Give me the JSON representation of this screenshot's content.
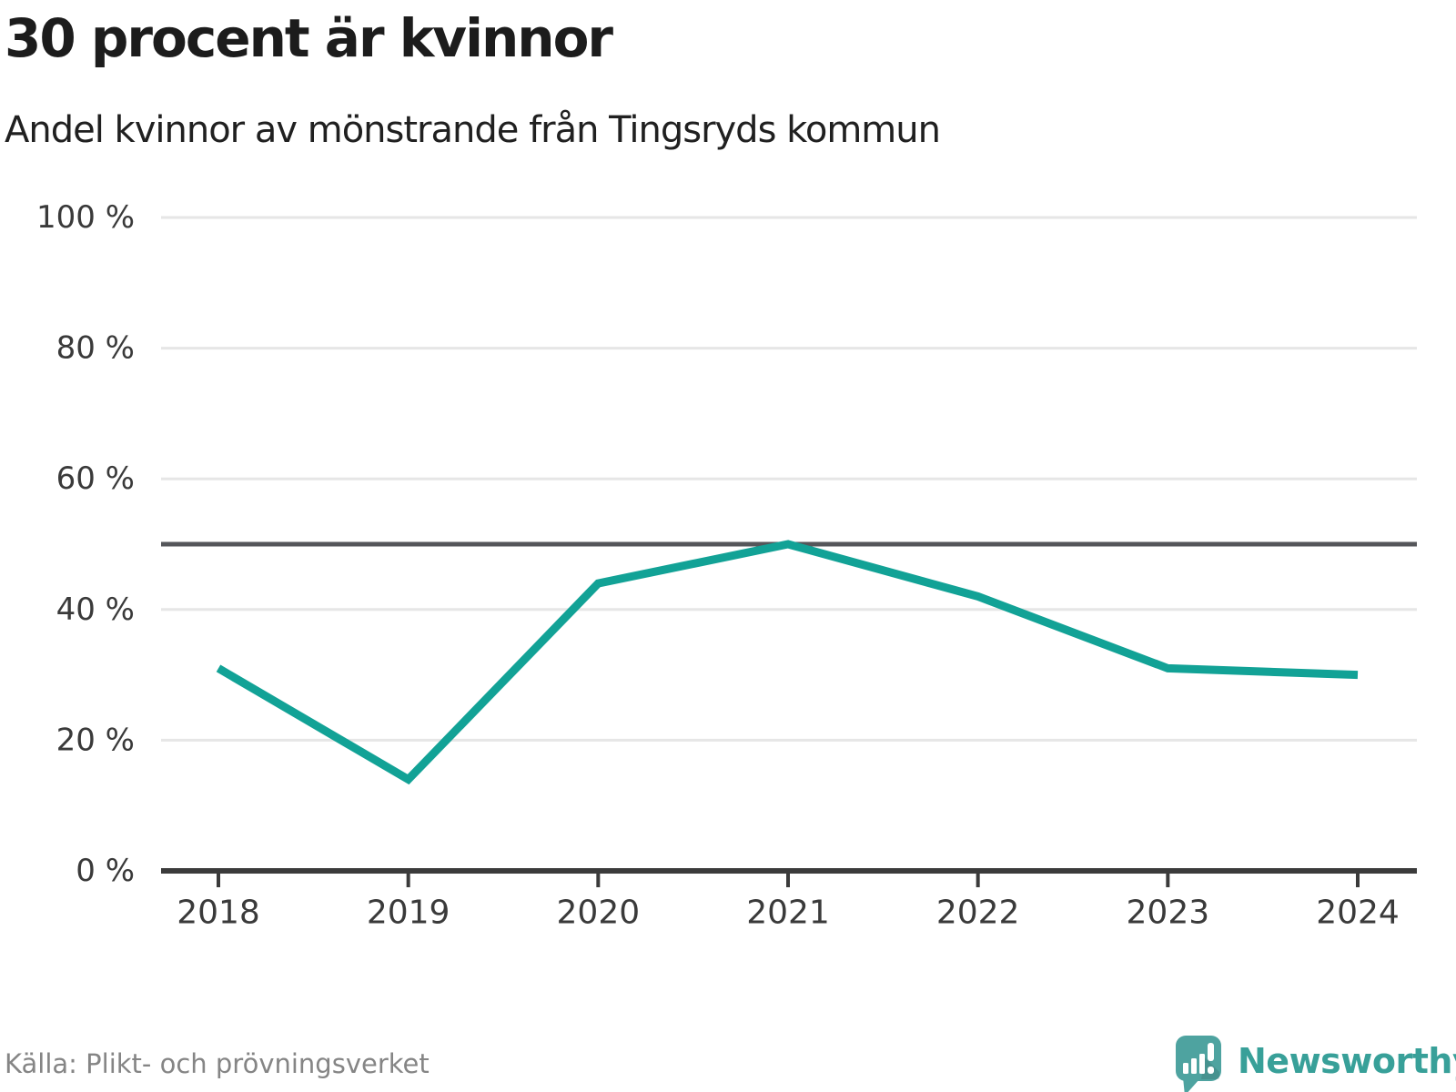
{
  "header": {
    "title": "30 procent är kvinnor",
    "subtitle": "Andel kvinnor av mönstrande från Tingsryds kommun"
  },
  "chart_data": {
    "type": "line",
    "title": "30 procent är kvinnor",
    "subtitle": "Andel kvinnor av mönstrande från Tingsryds kommun",
    "x": [
      2018,
      2019,
      2020,
      2021,
      2022,
      2023,
      2024
    ],
    "series": [
      {
        "name": "Andel kvinnor av mönstrande",
        "values": [
          31,
          14,
          44,
          50,
          42,
          31,
          30
        ]
      }
    ],
    "unit": "%",
    "ylim": [
      0,
      100
    ],
    "yticks": [
      0,
      20,
      40,
      60,
      80,
      100
    ],
    "ytick_suffix": " %",
    "reference_line": 50,
    "grid": "horizontal",
    "legend": "none",
    "colors": {
      "line": "#12a296",
      "grid": "#e6e6e6",
      "reference_line": "#55565a",
      "axis": "#3b3b3b",
      "tick_label": "#3a3a3a"
    }
  },
  "footer": {
    "source": "Källa: Plikt- och prövningsverket",
    "brand": "Newsworthy",
    "brand_text_color": "#38a099",
    "logo_color": "#4ea3a0"
  }
}
